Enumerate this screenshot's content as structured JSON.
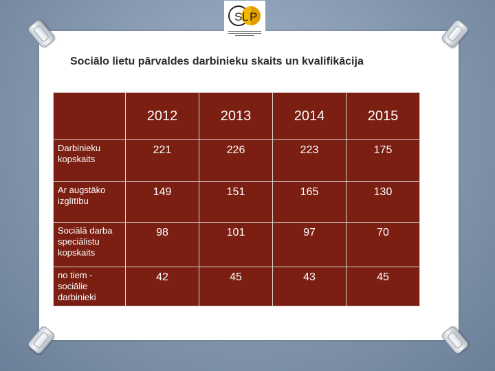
{
  "slide": {
    "title": "Sociālo lietu pārvaldes darbinieku skaits un kvalifikācija",
    "accent_color": "#7a1f12",
    "logo": {
      "letters": [
        "S",
        "L",
        "P"
      ]
    }
  },
  "table": {
    "columns": [
      "2012",
      "2013",
      "2014",
      "2015"
    ],
    "rows": [
      {
        "label": "Darbinieku kopskaits",
        "values": [
          "221",
          "226",
          "223",
          "175"
        ]
      },
      {
        "label": "Ar augstāko izglītību",
        "values": [
          "149",
          "151",
          "165",
          "130"
        ]
      },
      {
        "label": "Sociālā darba speciālistu kopskaits",
        "values": [
          "98",
          "101",
          "97",
          "70"
        ]
      },
      {
        "label": "no tiem - sociālie darbinieki",
        "values": [
          "42",
          "45",
          "43",
          "45"
        ]
      }
    ]
  }
}
